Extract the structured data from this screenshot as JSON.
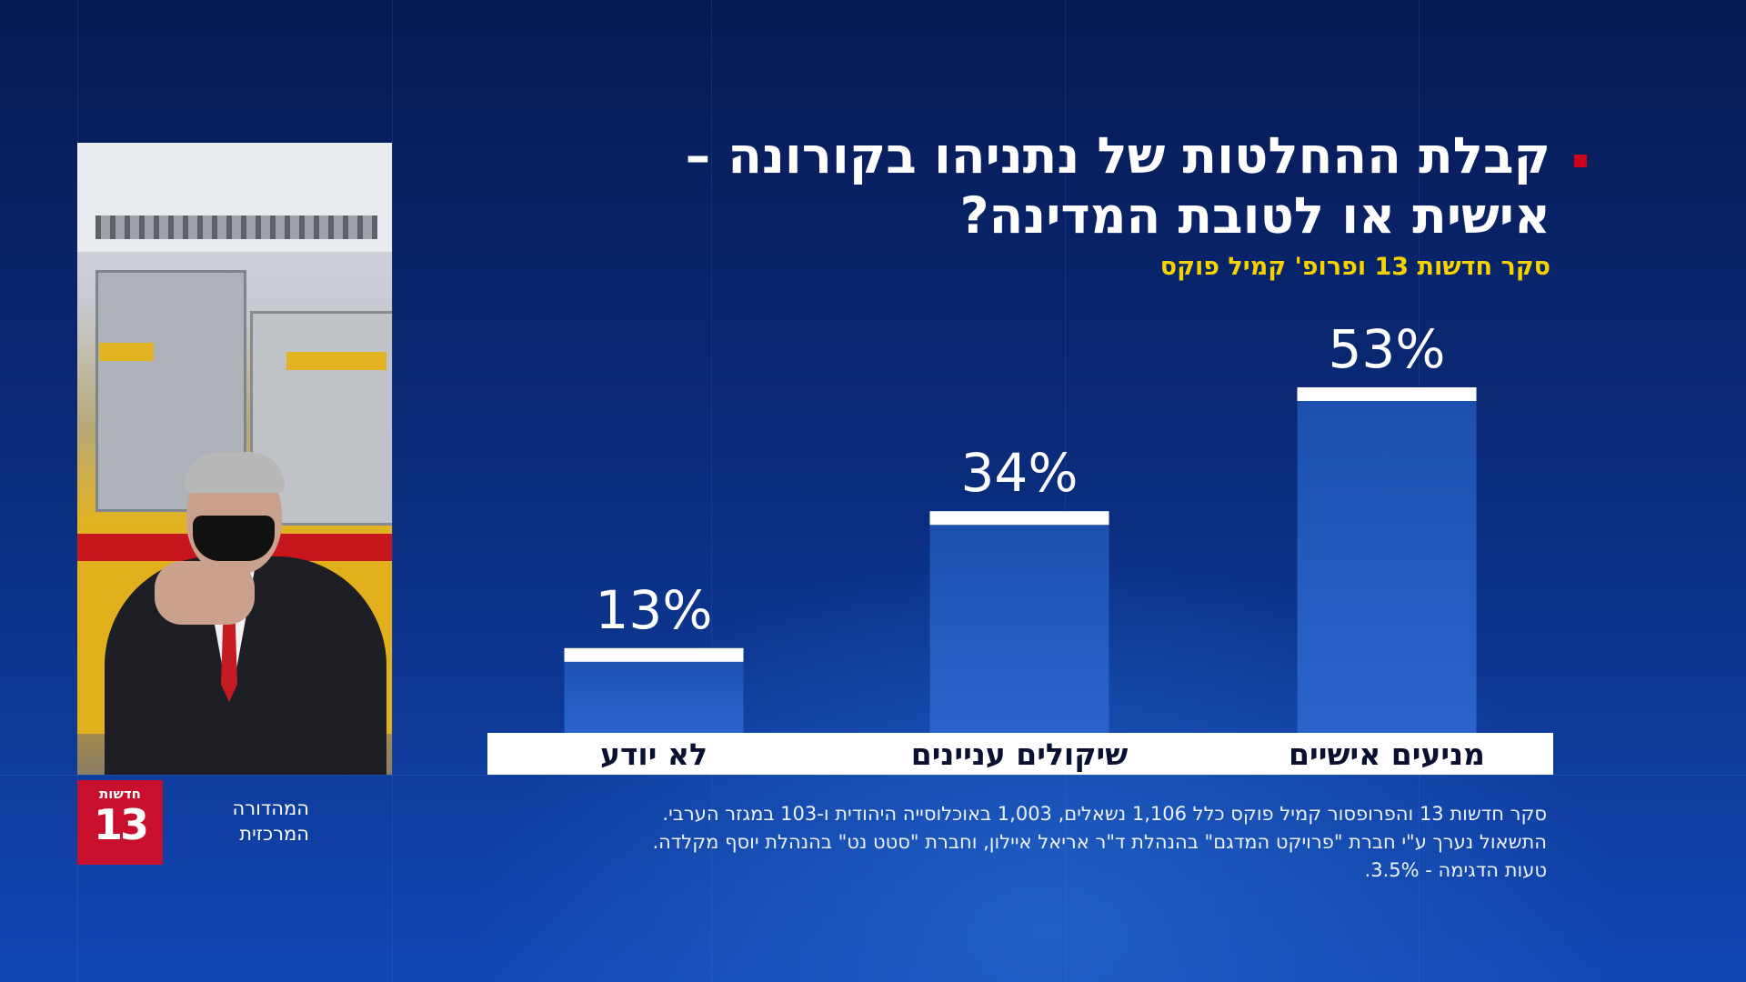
{
  "title": {
    "line1": "קבלת ההחלטות של נתניהו בקורונה –",
    "line2": "אישית או לטובת המדינה?"
  },
  "subtitle": "סקר חדשות 13 ופרופ' קמיל פוקס",
  "branding": {
    "logo_word": "חדשות",
    "logo_number": "13",
    "edition_line1": "המהדורה",
    "edition_line2": "המרכזית"
  },
  "colors": {
    "bar": "#1b4fad",
    "bar_cap": "#ffffff",
    "accent_red": "#d0021b",
    "subtitle_yellow": "#f6d200"
  },
  "chart_data": {
    "type": "bar",
    "categories": [
      "מניעים אישיים",
      "שיקולים עניינים",
      "לא יודע"
    ],
    "values": [
      53,
      34,
      13
    ],
    "value_labels": [
      "53%",
      "34%",
      "13%"
    ],
    "ylim": [
      0,
      53
    ],
    "grid": false,
    "legend": "none"
  },
  "footnote": {
    "line1": "סקר חדשות 13 והפרופסור קמיל פוקס כלל 1,106 נשאלים, 1,003 באוכלוסייה היהודית ו-103 במגזר הערבי.",
    "line2": "התשאול נערך ע\"י חברת \"פרויקט המדגם\" בהנהלת ד\"ר אריאל איילון, וחברת \"סטט נט\" בהנהלת יוסף מקלדה.",
    "line3": "טעות הדגימה - 3.5%."
  }
}
